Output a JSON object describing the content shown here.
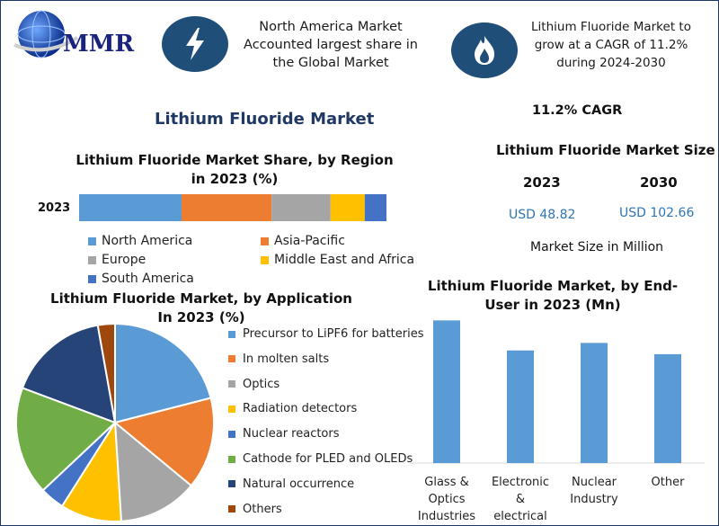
{
  "logo": {
    "text": "MMR"
  },
  "header": {
    "left_text": "North America Market Accounted largest share in the Global Market",
    "right_text": "Lithium Fluoride Market to grow at a CAGR of 11.2% during 2024-2030",
    "left_icon": "lightning-icon",
    "right_icon": "flame-icon"
  },
  "main_title": "Lithium Fluoride Market",
  "cagr_label": "11.2% CAGR",
  "market_size": {
    "title": "Lithium Fluoride Market Size",
    "year_a": "2023",
    "year_b": "2030",
    "value_a": "USD 48.82",
    "value_b": "USD 102.66",
    "note": "Market Size in Million"
  },
  "colors": {
    "blue": "#5b9bd5",
    "orange": "#ed7d31",
    "gray": "#a5a5a5",
    "yellow": "#ffc000",
    "darkblue": "#4472c4",
    "green": "#70ad47",
    "navy": "#264478",
    "brown": "#9e480e",
    "header_icon_bg": "#1f4e79"
  },
  "chart_data": [
    {
      "type": "bar",
      "orientation": "horizontal-stacked",
      "title": "Lithium Fluoride Market Share, by Region in 2023 (%)",
      "categories": [
        "2023"
      ],
      "series": [
        {
          "name": "North America",
          "values": [
            33
          ],
          "color": "#5b9bd5"
        },
        {
          "name": "Asia-Pacific",
          "values": [
            29
          ],
          "color": "#ed7d31"
        },
        {
          "name": "Europe",
          "values": [
            19
          ],
          "color": "#a5a5a5"
        },
        {
          "name": "Middle East and Africa",
          "values": [
            11
          ],
          "color": "#ffc000"
        },
        {
          "name": "South America",
          "values": [
            7
          ],
          "color": "#4472c4"
        }
      ],
      "legend": "bottom"
    },
    {
      "type": "pie",
      "title": "Lithium Fluoride Market, by Application In 2023 (%)",
      "slices": [
        {
          "label": "Precursor to LiPF6 for batteries",
          "value": 21,
          "color": "#5b9bd5"
        },
        {
          "label": "In molten salts",
          "value": 15,
          "color": "#ed7d31"
        },
        {
          "label": "Optics",
          "value": 13,
          "color": "#a5a5a5"
        },
        {
          "label": "Radiation detectors",
          "value": 10,
          "color": "#ffc000"
        },
        {
          "label": "Nuclear reactors",
          "value": 4,
          "color": "#4472c4"
        },
        {
          "label": "Cathode for PLED and OLEDs",
          "value": 17.7,
          "color": "#70ad47"
        },
        {
          "label": "Natural occurrence",
          "value": 16.5,
          "color": "#264478"
        },
        {
          "label": "Others",
          "value": 2.8,
          "color": "#9e480e"
        }
      ],
      "legend": "right"
    },
    {
      "type": "bar",
      "title": "Lithium Fluoride Market, by End-User in 2023 (Mn)",
      "categories": [
        "Glass & Optics Industries",
        "Electronic & electrical industries",
        "Nuclear Industry",
        "Other"
      ],
      "values": [
        19,
        15,
        16,
        14.5
      ],
      "ylim": [
        0,
        20
      ],
      "color": "#5b9bd5",
      "grid": false
    }
  ]
}
